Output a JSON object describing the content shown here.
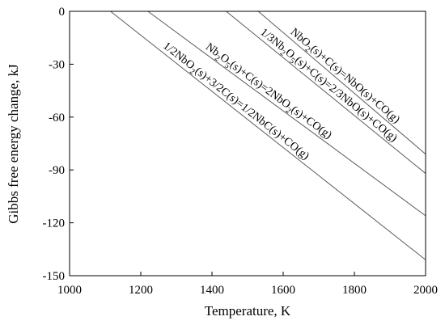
{
  "chart_data": {
    "type": "line",
    "title": "",
    "xlabel": "Temperature, K",
    "ylabel": "Gibbs free energy change, kJ",
    "xlim": [
      1000,
      2000
    ],
    "ylim": [
      -150,
      0
    ],
    "xticks": [
      1000,
      1200,
      1400,
      1600,
      1800,
      2000
    ],
    "yticks": [
      0,
      -30,
      -60,
      -90,
      -120,
      -150
    ],
    "grid": false,
    "legend": "none",
    "series": [
      {
        "name": "1/2NbO₂(s)+3/2C(s)=1/2NbC(s)+CO(g)",
        "label_parts": [
          "1/2NbO",
          "2",
          "(s)+3/2C(s)=1/2NbC(s)+CO(g)"
        ],
        "x": [
          1115,
          2000
        ],
        "y": [
          0,
          -141
        ]
      },
      {
        "name": "Nb₂O₅(s)+C(s)=2NbO₂(s)+CO(g)",
        "label_parts": [
          "Nb",
          "2",
          "O",
          "5",
          "(s)+C(s)=2NbO",
          "2",
          "(s)+CO(g)"
        ],
        "x": [
          1220,
          2000
        ],
        "y": [
          0,
          -116
        ]
      },
      {
        "name": "1/3Nb₂O₅(s)+C(s)=2/3NbO(s)+CO(g)",
        "label_parts": [
          "1/3Nb",
          "2",
          "O",
          "5",
          "(s)+C(s)=2/3NbO(s)+CO(g)"
        ],
        "x": [
          1440,
          2000
        ],
        "y": [
          0,
          -92
        ]
      },
      {
        "name": "NbO₂(s)+C(s)=NbO(s)+CO(g)",
        "label_parts": [
          "NbO",
          "2",
          "(s)+C(s)=NbO(s)+CO(g)"
        ],
        "x": [
          1530,
          2000
        ],
        "y": [
          0,
          -81
        ]
      }
    ]
  }
}
